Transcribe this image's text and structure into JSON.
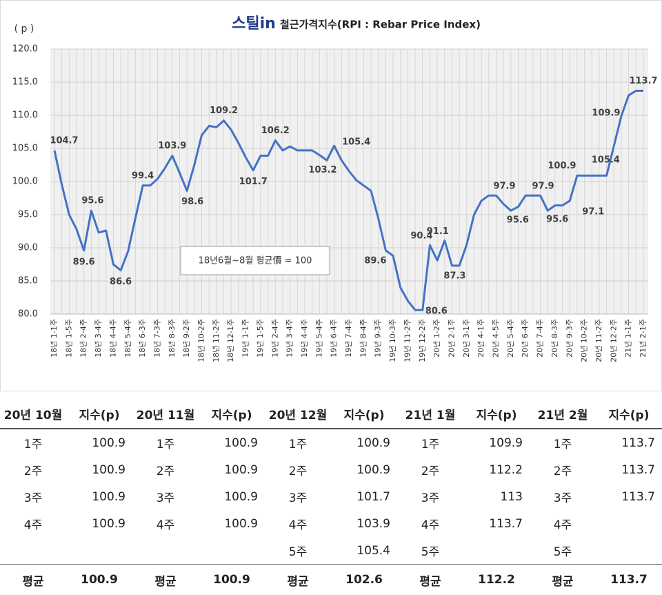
{
  "chart_data": {
    "type": "line",
    "logo": "스틸in",
    "title": "철근가격지수(RPI : Rebar Price Index)",
    "y_label": "( p )",
    "annotation": "18년6월~8월 평균價 = 100",
    "categories": [
      "18년 1-1주",
      null,
      "18년 1-5주",
      null,
      "18년 2-4주",
      null,
      "18년 3-4주",
      null,
      "18년 4-4주",
      null,
      "18년 5-4주",
      null,
      "18년 6-3주",
      null,
      "18년 7-3주",
      null,
      "18년 8-3주",
      null,
      "18년 9-2주",
      null,
      "18년 10-2주",
      null,
      "18년 11-2주",
      null,
      "18년 12-1주",
      null,
      "19년 1-1주",
      null,
      "19년 1-5주",
      null,
      "19년 2-4주",
      null,
      "19년 3-4주",
      null,
      "19년 4-4주",
      null,
      "19년 5-4주",
      null,
      "19년 6-4주",
      null,
      "19년 7-4주",
      null,
      "19년 8-4주",
      null,
      "19년 9-3주",
      null,
      "19년 10-3주",
      null,
      "19년 11-2주",
      null,
      "19년 12-2주",
      null,
      "20년 1-2주",
      null,
      "20년 2-1주",
      null,
      "20년 3-1주",
      null,
      "20년 4-1주",
      null,
      "20년 4-5주",
      null,
      "20년 5-4주",
      null,
      "20년 6-4주",
      null,
      "20년 7-4주",
      null,
      "20년 8-3주",
      null,
      "20년 9-3주",
      null,
      "20년 10-2주",
      null,
      "20년 11-2주",
      null,
      "20년 12-2주",
      null,
      "21년 1-1주",
      null,
      "21년 2-1주"
    ],
    "values": [
      104.7,
      99.5,
      95,
      92.8,
      89.6,
      95.6,
      92.3,
      92.6,
      87.5,
      86.6,
      89.5,
      94.5,
      99.4,
      99.4,
      100.4,
      102,
      103.9,
      101.3,
      98.6,
      102.5,
      107,
      108.4,
      108.2,
      109.2,
      107.8,
      105.8,
      103.6,
      101.7,
      103.9,
      103.9,
      106.2,
      104.7,
      105.3,
      104.7,
      104.7,
      104.7,
      104,
      103.2,
      105.4,
      103.2,
      101.6,
      100.2,
      99.4,
      98.6,
      94.4,
      89.6,
      88.8,
      84,
      82,
      80.6,
      80.6,
      90.4,
      88.1,
      91.1,
      87.3,
      87.3,
      90.5,
      95,
      97.1,
      97.9,
      97.9,
      96.6,
      95.6,
      96.2,
      97.9,
      97.9,
      97.9,
      95.6,
      96.4,
      96.4,
      97.1,
      100.9,
      100.9,
      100.9,
      100.9,
      100.9,
      105.4,
      109.9,
      113,
      113.7,
      113.7
    ],
    "value_labels": [
      "104.7",
      null,
      null,
      null,
      "89.6",
      "95.6",
      null,
      null,
      null,
      "86.6",
      null,
      null,
      "99.4",
      null,
      null,
      null,
      "103.9",
      null,
      "98.6",
      null,
      null,
      null,
      null,
      "109.2",
      null,
      null,
      null,
      "101.7",
      null,
      null,
      "106.2",
      null,
      null,
      null,
      null,
      null,
      null,
      "103.2",
      "105.4",
      null,
      null,
      null,
      null,
      null,
      null,
      "89.6",
      null,
      null,
      null,
      null,
      "80.6",
      "90.4",
      null,
      "91.1",
      "87.3",
      null,
      null,
      null,
      null,
      null,
      "97.9",
      null,
      "95.6",
      null,
      null,
      null,
      "97.9",
      "95.6",
      null,
      null,
      "97.1",
      "100.9",
      null,
      null,
      null,
      null,
      "105.4",
      "109.9",
      null,
      null,
      "113.7"
    ],
    "color": "#4472c4",
    "ylim": [
      80,
      120
    ],
    "yticks": [
      {
        "value": 80,
        "label": "80.0"
      },
      {
        "value": 85,
        "label": "85.0"
      },
      {
        "value": 90,
        "label": "90.0"
      },
      {
        "value": 95,
        "label": "95.0"
      },
      {
        "value": 100,
        "label": "100.0"
      },
      {
        "value": 105,
        "label": "105.0"
      },
      {
        "value": 110,
        "label": "110.0"
      },
      {
        "value": 115,
        "label": "115.0"
      },
      {
        "value": 120,
        "label": "120.0"
      }
    ],
    "grid": true
  },
  "table": {
    "header": [
      "20년 10월",
      "지수(p)",
      "20년 11월",
      "지수(p)",
      "20년 12월",
      "지수(p)",
      "21년 1월",
      "지수(p)",
      "21년 2월",
      "지수(p)"
    ],
    "rows": [
      [
        "1주",
        100.9,
        "1주",
        100.9,
        "1주",
        100.9,
        "1주",
        109.9,
        "1주",
        113.7
      ],
      [
        "2주",
        100.9,
        "2주",
        100.9,
        "2주",
        100.9,
        "2주",
        112.2,
        "2주",
        113.7
      ],
      [
        "3주",
        100.9,
        "3주",
        100.9,
        "3주",
        101.7,
        "3주",
        113,
        "3주",
        113.7
      ],
      [
        "4주",
        100.9,
        "4주",
        100.9,
        "4주",
        103.9,
        "4주",
        113.7,
        "4주",
        null
      ],
      [
        null,
        null,
        null,
        null,
        "5주",
        105.4,
        "5주",
        null,
        "5주",
        null
      ]
    ],
    "footer": [
      "평균",
      100.9,
      "평균",
      100.9,
      "평균",
      102.6,
      "평균",
      112.2,
      "평균",
      113.7
    ]
  }
}
